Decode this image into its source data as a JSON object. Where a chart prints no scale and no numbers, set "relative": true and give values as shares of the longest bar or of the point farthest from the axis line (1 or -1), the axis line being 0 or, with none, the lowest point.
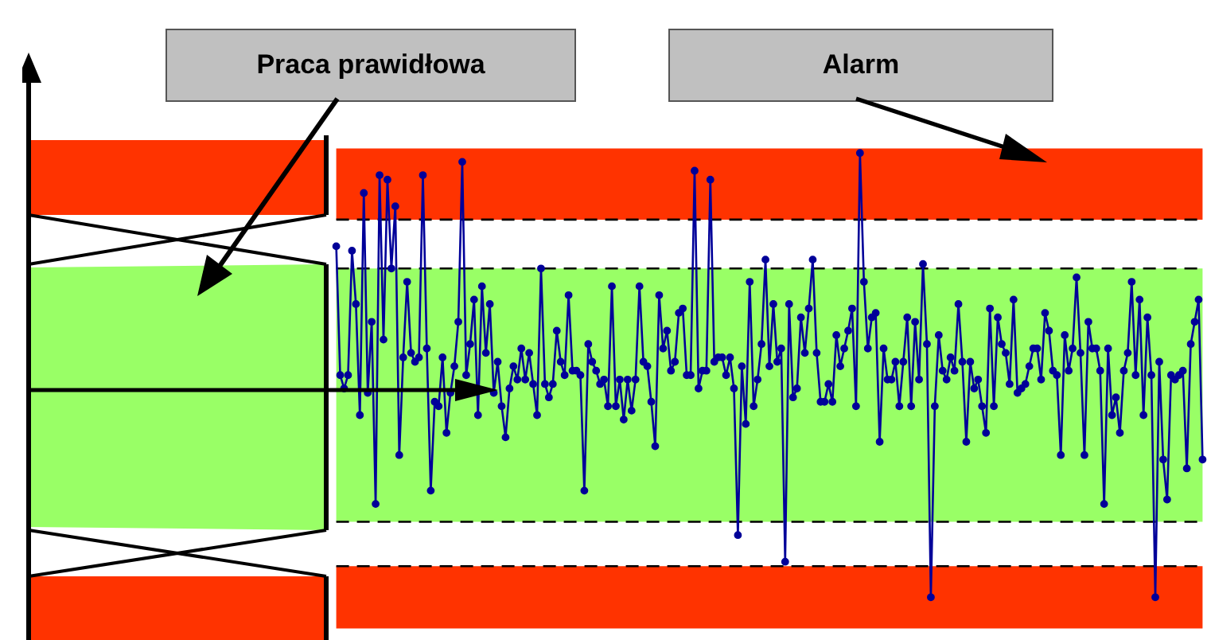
{
  "chart_data": {
    "type": "line",
    "relative": true,
    "legend": false,
    "grid": false,
    "tick_labels": false,
    "marker": "circle",
    "line_style": "solid",
    "annotations": [
      "Praca prawidłowa",
      "Alarm"
    ],
    "categories": [
      null,
      null,
      null,
      null,
      null,
      null,
      null,
      null,
      null,
      null,
      null,
      null,
      null,
      null,
      null,
      null,
      null,
      null,
      null,
      null,
      null,
      null,
      null,
      null,
      null,
      null,
      null,
      null,
      null,
      null,
      null,
      null,
      null,
      null,
      null,
      null,
      null,
      null,
      null,
      null,
      null,
      null,
      null,
      null,
      null,
      null,
      null,
      null,
      null,
      null,
      null,
      null,
      null,
      null,
      null,
      null,
      null,
      null,
      null,
      null,
      null,
      null,
      null,
      null,
      null,
      null,
      null,
      null,
      null,
      null,
      null,
      null,
      null,
      null,
      null,
      null,
      null,
      null,
      null,
      null,
      null,
      null,
      null,
      null,
      null,
      null,
      null,
      null,
      null,
      null,
      null,
      null,
      null,
      null,
      null,
      null,
      null,
      null,
      null,
      null,
      null,
      null,
      null,
      null,
      null,
      null,
      null,
      null,
      null,
      null,
      null,
      null,
      null,
      null,
      null,
      null,
      null,
      null,
      null,
      null,
      null,
      null,
      null,
      null,
      null,
      null,
      null,
      null,
      null,
      null,
      null,
      null,
      null,
      null,
      null,
      null,
      null,
      null,
      null,
      null,
      null,
      null,
      null,
      null,
      null,
      null,
      null,
      null,
      null,
      null,
      null,
      null,
      null,
      null,
      null,
      null,
      null,
      null,
      null,
      null,
      null,
      null,
      null,
      null,
      null,
      null,
      null,
      null,
      null,
      null,
      null,
      null,
      null,
      null,
      null,
      null,
      null,
      null,
      null,
      null,
      null,
      null,
      null,
      null,
      null,
      null,
      null,
      null,
      null,
      null,
      null,
      null,
      null,
      null,
      null,
      null,
      null,
      null,
      null,
      null,
      null,
      null,
      null,
      null,
      null,
      null,
      null,
      null,
      null,
      null,
      null,
      null,
      null,
      null,
      null,
      null,
      null,
      null,
      null,
      null,
      null
    ],
    "series": [
      {
        "color": "#000099",
        "values": [
          0.79,
          0.5,
          0.47,
          0.5,
          0.78,
          0.66,
          0.41,
          0.91,
          0.46,
          0.62,
          0.21,
          0.95,
          0.58,
          0.94,
          0.74,
          0.88,
          0.32,
          0.54,
          0.71,
          0.55,
          0.53,
          0.54,
          0.95,
          0.56,
          0.24,
          0.44,
          0.43,
          0.54,
          0.37,
          0.46,
          0.52,
          0.62,
          0.98,
          0.5,
          0.57,
          0.67,
          0.41,
          0.7,
          0.55,
          0.66,
          0.46,
          0.53,
          0.43,
          0.36,
          0.47,
          0.52,
          0.49,
          0.56,
          0.49,
          0.55,
          0.48,
          0.41,
          0.74,
          0.48,
          0.45,
          0.48,
          0.6,
          0.53,
          0.5,
          0.68,
          0.51,
          0.51,
          0.5,
          0.24,
          0.57,
          0.53,
          0.51,
          0.48,
          0.49,
          0.43,
          0.7,
          0.43,
          0.49,
          0.4,
          0.49,
          0.42,
          0.49,
          0.7,
          0.53,
          0.52,
          0.44,
          0.34,
          0.68,
          0.56,
          0.6,
          0.51,
          0.53,
          0.64,
          0.65,
          0.5,
          0.5,
          0.96,
          0.47,
          0.51,
          0.51,
          0.94,
          0.53,
          0.54,
          0.54,
          0.5,
          0.54,
          0.47,
          0.14,
          0.52,
          0.39,
          0.71,
          0.43,
          0.49,
          0.57,
          0.76,
          0.52,
          0.66,
          0.53,
          0.56,
          0.08,
          0.66,
          0.45,
          0.47,
          0.63,
          0.55,
          0.65,
          0.76,
          0.55,
          0.44,
          0.44,
          0.48,
          0.44,
          0.59,
          0.52,
          0.56,
          0.6,
          0.65,
          0.43,
          1,
          0.71,
          0.56,
          0.63,
          0.64,
          0.35,
          0.56,
          0.49,
          0.49,
          0.53,
          0.43,
          0.53,
          0.63,
          0.43,
          0.62,
          0.49,
          0.75,
          0.57,
          0,
          0.43,
          0.59,
          0.51,
          0.49,
          0.54,
          0.51,
          0.66,
          0.53,
          0.35,
          0.53,
          0.47,
          0.49,
          0.43,
          0.37,
          0.65,
          0.43,
          0.63,
          0.57,
          0.55,
          0.48,
          0.67,
          0.46,
          0.47,
          0.48,
          0.52,
          0.56,
          0.56,
          0.49,
          0.64,
          0.6,
          0.51,
          0.5,
          0.32,
          0.59,
          0.51,
          0.56,
          0.72,
          0.55,
          0.32,
          0.62,
          0.56,
          0.56,
          0.51,
          0.21,
          0.56,
          0.41,
          0.45,
          0.37,
          0.51,
          0.55,
          0.71,
          0.5,
          0.67,
          0.41,
          0.63,
          0.5,
          0,
          0.53,
          0.31,
          0.22,
          0.5,
          0.49,
          0.5,
          0.51,
          0.29,
          0.57,
          0.62,
          0.67,
          0.31
        ]
      }
    ],
    "bands": [
      {
        "axis": "y",
        "from": 0.85,
        "to": 1.01,
        "color": "#ff3300"
      },
      {
        "axis": "y",
        "from": 0.17,
        "to": 0.74,
        "color": "#99ff66"
      },
      {
        "axis": "y",
        "from": -0.07,
        "to": 0.07,
        "color": "#ff3300"
      }
    ],
    "ref_lines": [
      {
        "axis": "y",
        "value": 0.85,
        "color": "#000000",
        "line_style": "dashed"
      },
      {
        "axis": "y",
        "value": 0.74,
        "color": "#000000",
        "line_style": "dashed"
      },
      {
        "axis": "y",
        "value": 0.17,
        "color": "#000000",
        "line_style": "dashed"
      },
      {
        "axis": "y",
        "value": 0.07,
        "color": "#000000",
        "line_style": "dashed"
      }
    ]
  }
}
